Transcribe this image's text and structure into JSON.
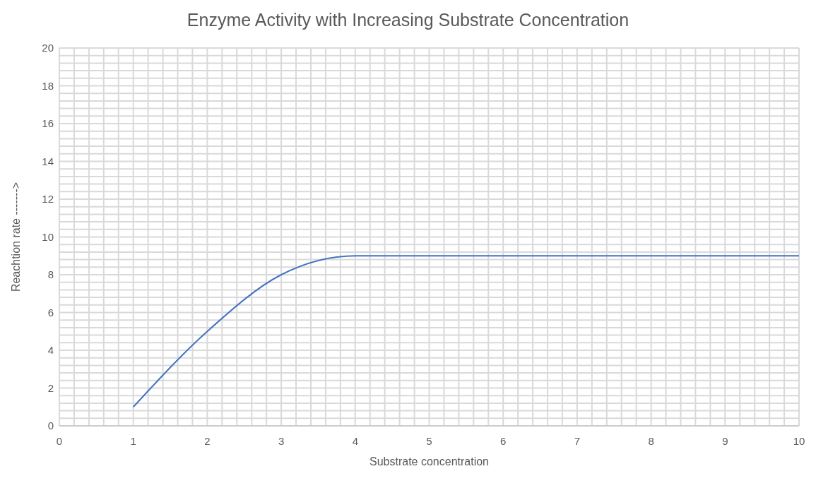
{
  "chart_data": {
    "type": "line",
    "title": "Enzyme Activity with Increasing Substrate Concentration",
    "xlabel": "Substrate concentration",
    "ylabel": "Reachtion rate ------->",
    "x": [
      1,
      2,
      3,
      4,
      5,
      6,
      7,
      8,
      9,
      10
    ],
    "series": [
      {
        "color": "#4472c4",
        "values": [
          1,
          5,
          8,
          9,
          9,
          9,
          9,
          9,
          9,
          9
        ]
      }
    ],
    "xlim": [
      0,
      10
    ],
    "xticks": [
      0,
      {
        "value": 0.2,
        "label": null
      },
      {
        "value": 0.4,
        "label": null
      },
      {
        "value": 0.6,
        "label": null
      },
      {
        "value": 0.8,
        "label": null
      },
      1,
      {
        "value": 1.2,
        "label": null
      },
      {
        "value": 1.4,
        "label": null
      },
      {
        "value": 1.6,
        "label": null
      },
      {
        "value": 1.8,
        "label": null
      },
      2,
      {
        "value": 2.2,
        "label": null
      },
      {
        "value": 2.4,
        "label": null
      },
      {
        "value": 2.6,
        "label": null
      },
      {
        "value": 2.8,
        "label": null
      },
      3,
      {
        "value": 3.2,
        "label": null
      },
      {
        "value": 3.4,
        "label": null
      },
      {
        "value": 3.6,
        "label": null
      },
      {
        "value": 3.8,
        "label": null
      },
      4,
      {
        "value": 4.2,
        "label": null
      },
      {
        "value": 4.4,
        "label": null
      },
      {
        "value": 4.6,
        "label": null
      },
      {
        "value": 4.8,
        "label": null
      },
      5,
      {
        "value": 5.2,
        "label": null
      },
      {
        "value": 5.4,
        "label": null
      },
      {
        "value": 5.6,
        "label": null
      },
      {
        "value": 5.8,
        "label": null
      },
      6,
      {
        "value": 6.2,
        "label": null
      },
      {
        "value": 6.4,
        "label": null
      },
      {
        "value": 6.6,
        "label": null
      },
      {
        "value": 6.8,
        "label": null
      },
      7,
      {
        "value": 7.2,
        "label": null
      },
      {
        "value": 7.4,
        "label": null
      },
      {
        "value": 7.6,
        "label": null
      },
      {
        "value": 7.8,
        "label": null
      },
      8,
      {
        "value": 8.2,
        "label": null
      },
      {
        "value": 8.4,
        "label": null
      },
      {
        "value": 8.6,
        "label": null
      },
      {
        "value": 8.8,
        "label": null
      },
      9,
      {
        "value": 9.2,
        "label": null
      },
      {
        "value": 9.4,
        "label": null
      },
      {
        "value": 9.6,
        "label": null
      },
      {
        "value": 9.8,
        "label": null
      },
      10
    ],
    "ylim": [
      0,
      20
    ],
    "yticks": [
      0,
      {
        "value": 0.4,
        "label": null
      },
      {
        "value": 0.8,
        "label": null
      },
      {
        "value": 1.2,
        "label": null
      },
      {
        "value": 1.6,
        "label": null
      },
      2,
      {
        "value": 2.4,
        "label": null
      },
      {
        "value": 2.8,
        "label": null
      },
      {
        "value": 3.2,
        "label": null
      },
      {
        "value": 3.6,
        "label": null
      },
      4,
      {
        "value": 4.4,
        "label": null
      },
      {
        "value": 4.8,
        "label": null
      },
      {
        "value": 5.2,
        "label": null
      },
      {
        "value": 5.6,
        "label": null
      },
      6,
      {
        "value": 6.4,
        "label": null
      },
      {
        "value": 6.8,
        "label": null
      },
      {
        "value": 7.2,
        "label": null
      },
      {
        "value": 7.6,
        "label": null
      },
      8,
      {
        "value": 8.4,
        "label": null
      },
      {
        "value": 8.8,
        "label": null
      },
      {
        "value": 9.2,
        "label": null
      },
      {
        "value": 9.6,
        "label": null
      },
      10,
      {
        "value": 10.4,
        "label": null
      },
      {
        "value": 10.8,
        "label": null
      },
      {
        "value": 11.2,
        "label": null
      },
      {
        "value": 11.6,
        "label": null
      },
      12,
      {
        "value": 12.4,
        "label": null
      },
      {
        "value": 12.8,
        "label": null
      },
      {
        "value": 13.2,
        "label": null
      },
      {
        "value": 13.6,
        "label": null
      },
      14,
      {
        "value": 14.4,
        "label": null
      },
      {
        "value": 14.8,
        "label": null
      },
      {
        "value": 15.2,
        "label": null
      },
      {
        "value": 15.6,
        "label": null
      },
      16,
      {
        "value": 16.4,
        "label": null
      },
      {
        "value": 16.8,
        "label": null
      },
      {
        "value": 17.2,
        "label": null
      },
      {
        "value": 17.6,
        "label": null
      },
      18,
      {
        "value": 18.4,
        "label": null
      },
      {
        "value": 18.8,
        "label": null
      },
      {
        "value": 19.2,
        "label": null
      },
      {
        "value": 19.6,
        "label": null
      },
      20
    ],
    "grid": true,
    "marker": "none",
    "line_style": "solid"
  }
}
